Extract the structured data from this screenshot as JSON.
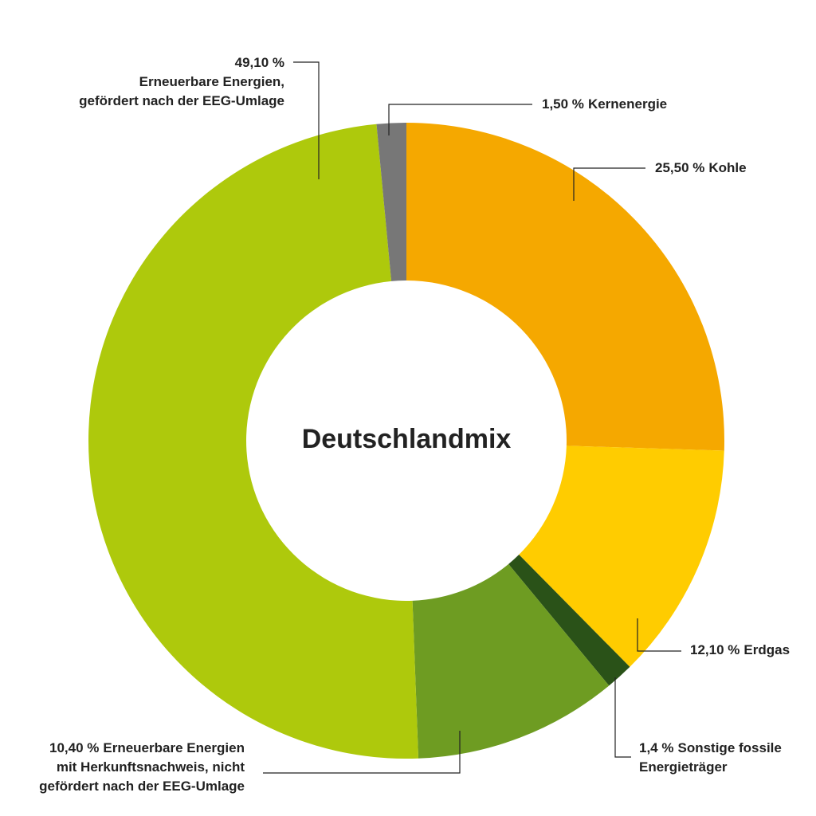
{
  "chart_data": {
    "type": "donut",
    "title": "Deutschlandmix",
    "categories": [
      [
        "Kohle"
      ],
      [
        "Erdgas"
      ],
      [
        "Sonstige fossile",
        "Energieträger"
      ],
      [
        "Erneuerbare Energien",
        "mit Herkunftsnachweis, nicht",
        "gefördert nach der EEG-Umlage"
      ],
      [
        "Erneuerbare Energien,",
        "gefördert nach der EEG-Umlage"
      ],
      [
        "Kernenergie"
      ]
    ],
    "values": [
      25.5,
      12.1,
      1.4,
      10.4,
      49.1,
      1.5
    ],
    "value_labels": [
      "25,50 %",
      "12,10 %",
      "1,4 %",
      "10,40 %",
      "49,10 %",
      "1,50 %"
    ],
    "colors": [
      "#f5a800",
      "#ffcc00",
      "#2a5218",
      "#6e9c22",
      "#aec90c",
      "#777777"
    ]
  }
}
